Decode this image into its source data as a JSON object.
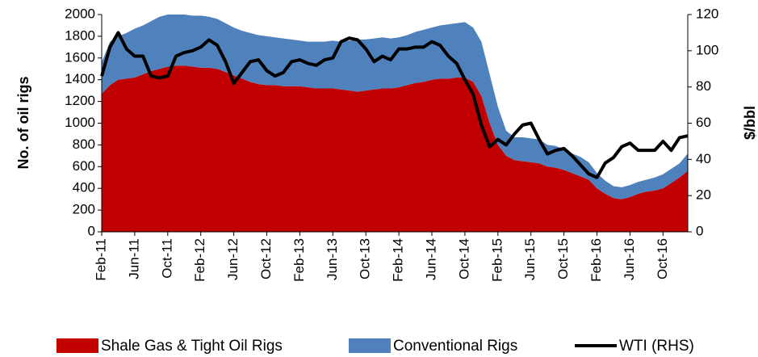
{
  "chart_data": {
    "type": "stacked_area_line",
    "y_label": "No. of oil rigs",
    "y2_label": "$/bbl",
    "categories": [
      "Feb-11",
      null,
      null,
      null,
      "Jun-11",
      null,
      null,
      null,
      "Oct-11",
      null,
      null,
      null,
      "Feb-12",
      null,
      null,
      null,
      "Jun-12",
      null,
      null,
      null,
      "Oct-12",
      null,
      null,
      null,
      "Feb-13",
      null,
      null,
      null,
      "Jun-13",
      null,
      null,
      null,
      "Oct-13",
      null,
      null,
      null,
      "Feb-14",
      null,
      null,
      null,
      "Jun-14",
      null,
      null,
      null,
      "Oct-14",
      null,
      null,
      null,
      "Feb-15",
      null,
      null,
      null,
      "Jun-15",
      null,
      null,
      null,
      "Oct-15",
      null,
      null,
      null,
      "Feb-16",
      null,
      null,
      null,
      "Jun-16",
      null,
      null,
      null,
      "Oct-16",
      null,
      null,
      null
    ],
    "series": [
      {
        "name": "Shale Gas & Tight Oil Rigs",
        "color": "#c00000",
        "kind": "area",
        "values": [
          1270,
          1350,
          1400,
          1410,
          1420,
          1450,
          1480,
          1500,
          1520,
          1530,
          1530,
          1520,
          1510,
          1510,
          1500,
          1470,
          1440,
          1410,
          1380,
          1360,
          1350,
          1350,
          1340,
          1340,
          1340,
          1330,
          1320,
          1320,
          1320,
          1310,
          1300,
          1290,
          1300,
          1310,
          1320,
          1320,
          1330,
          1350,
          1370,
          1380,
          1400,
          1410,
          1410,
          1420,
          1420,
          1380,
          1250,
          1000,
          800,
          700,
          660,
          650,
          640,
          630,
          600,
          590,
          570,
          540,
          510,
          480,
          400,
          350,
          310,
          300,
          320,
          350,
          370,
          380,
          400,
          450,
          500,
          560
        ]
      },
      {
        "name": "Conventional Rigs",
        "color": "#4f81bd",
        "kind": "area",
        "values": [
          290,
          400,
          400,
          420,
          450,
          450,
          460,
          480,
          480,
          470,
          470,
          470,
          480,
          470,
          460,
          450,
          440,
          440,
          450,
          450,
          450,
          440,
          440,
          430,
          420,
          420,
          430,
          430,
          440,
          440,
          460,
          480,
          470,
          470,
          470,
          460,
          460,
          460,
          470,
          480,
          480,
          490,
          500,
          500,
          510,
          500,
          500,
          450,
          350,
          230,
          210,
          220,
          220,
          220,
          200,
          200,
          190,
          180,
          180,
          160,
          140,
          120,
          110,
          110,
          110,
          110,
          110,
          120,
          130,
          130,
          130,
          160
        ]
      },
      {
        "name": "WTI (RHS)",
        "color": "#000000",
        "kind": "line",
        "axis": "y2",
        "values": [
          86,
          102,
          110,
          101,
          97,
          97,
          86,
          85,
          86,
          97,
          99,
          100,
          102,
          106,
          103,
          94,
          82,
          88,
          94,
          95,
          89,
          86,
          88,
          94,
          95,
          93,
          92,
          95,
          96,
          105,
          107,
          106,
          101,
          94,
          97,
          95,
          101,
          101,
          102,
          102,
          105,
          103,
          97,
          93,
          84,
          76,
          59,
          47,
          51,
          48,
          54,
          59,
          60,
          51,
          43,
          45,
          46,
          42,
          37,
          32,
          30,
          38,
          41,
          47,
          49,
          45,
          45,
          45,
          50,
          45,
          52,
          53
        ]
      }
    ],
    "ylim": [
      0,
      2000
    ],
    "yticks": [
      0,
      200,
      400,
      600,
      800,
      1000,
      1200,
      1400,
      1600,
      1800,
      2000
    ],
    "y2lim": [
      0,
      120
    ],
    "y2ticks": [
      0,
      20,
      40,
      60,
      80,
      100,
      120
    ],
    "legend": "bottom"
  }
}
